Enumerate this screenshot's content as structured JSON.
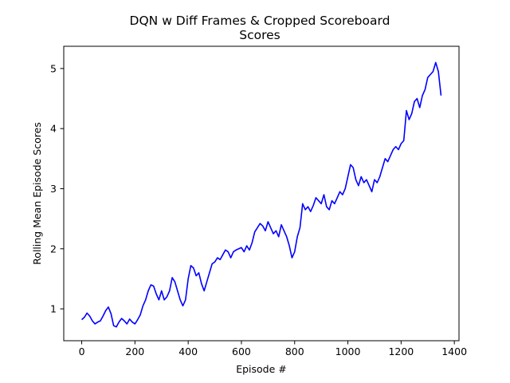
{
  "chart_data": {
    "type": "line",
    "title": "DQN w Diff Frames & Cropped Scoreboard",
    "subtitle": "Scores",
    "xlabel": "Episode #",
    "ylabel": "Rolling Mean Episode Scores",
    "xlim": [
      -67.5,
      1417.5
    ],
    "ylim": [
      0.47,
      5.37
    ],
    "xticks": [
      0,
      200,
      400,
      600,
      800,
      1000,
      1200,
      1400
    ],
    "yticks": [
      1,
      2,
      3,
      4,
      5
    ],
    "grid": false,
    "legend": "none",
    "colors": {
      "line": "#0000ff"
    },
    "series": [
      {
        "x": [
          0,
          10,
          20,
          30,
          40,
          50,
          60,
          70,
          80,
          90,
          100,
          110,
          120,
          130,
          140,
          150,
          160,
          170,
          180,
          190,
          200,
          210,
          220,
          230,
          240,
          250,
          260,
          270,
          280,
          290,
          300,
          310,
          320,
          330,
          340,
          350,
          360,
          370,
          380,
          390,
          400,
          410,
          420,
          430,
          440,
          450,
          460,
          470,
          480,
          490,
          500,
          510,
          520,
          530,
          540,
          550,
          560,
          570,
          580,
          590,
          600,
          610,
          620,
          630,
          640,
          650,
          660,
          670,
          680,
          690,
          700,
          710,
          720,
          730,
          740,
          750,
          760,
          770,
          780,
          790,
          800,
          810,
          820,
          830,
          840,
          850,
          860,
          870,
          880,
          890,
          900,
          910,
          920,
          930,
          940,
          950,
          960,
          970,
          980,
          990,
          1000,
          1010,
          1020,
          1030,
          1040,
          1050,
          1060,
          1070,
          1080,
          1090,
          1100,
          1110,
          1120,
          1130,
          1140,
          1150,
          1160,
          1170,
          1180,
          1190,
          1200,
          1210,
          1220,
          1230,
          1240,
          1250,
          1260,
          1270,
          1280,
          1290,
          1300,
          1310,
          1320,
          1330,
          1340,
          1350
        ],
        "y": [
          0.82,
          0.86,
          0.93,
          0.88,
          0.8,
          0.75,
          0.78,
          0.8,
          0.88,
          0.97,
          1.03,
          0.92,
          0.72,
          0.7,
          0.78,
          0.84,
          0.8,
          0.75,
          0.83,
          0.78,
          0.75,
          0.82,
          0.9,
          1.05,
          1.15,
          1.3,
          1.4,
          1.38,
          1.25,
          1.15,
          1.3,
          1.15,
          1.2,
          1.3,
          1.52,
          1.45,
          1.3,
          1.15,
          1.05,
          1.15,
          1.5,
          1.72,
          1.68,
          1.55,
          1.6,
          1.42,
          1.3,
          1.45,
          1.6,
          1.75,
          1.78,
          1.85,
          1.82,
          1.9,
          1.98,
          1.95,
          1.85,
          1.95,
          1.98,
          2.0,
          2.02,
          1.95,
          2.05,
          1.98,
          2.1,
          2.28,
          2.35,
          2.42,
          2.38,
          2.3,
          2.45,
          2.35,
          2.25,
          2.3,
          2.2,
          2.4,
          2.3,
          2.2,
          2.05,
          1.85,
          1.95,
          2.2,
          2.35,
          2.75,
          2.65,
          2.7,
          2.62,
          2.72,
          2.85,
          2.8,
          2.75,
          2.9,
          2.7,
          2.65,
          2.8,
          2.75,
          2.85,
          2.95,
          2.9,
          3.0,
          3.2,
          3.4,
          3.35,
          3.15,
          3.05,
          3.2,
          3.1,
          3.15,
          3.05,
          2.95,
          3.15,
          3.1,
          3.2,
          3.35,
          3.5,
          3.45,
          3.55,
          3.65,
          3.7,
          3.65,
          3.75,
          3.8,
          4.3,
          4.15,
          4.25,
          4.45,
          4.5,
          4.35,
          4.55,
          4.65,
          4.85,
          4.9,
          4.95,
          5.1,
          4.95,
          4.55
        ]
      }
    ]
  }
}
